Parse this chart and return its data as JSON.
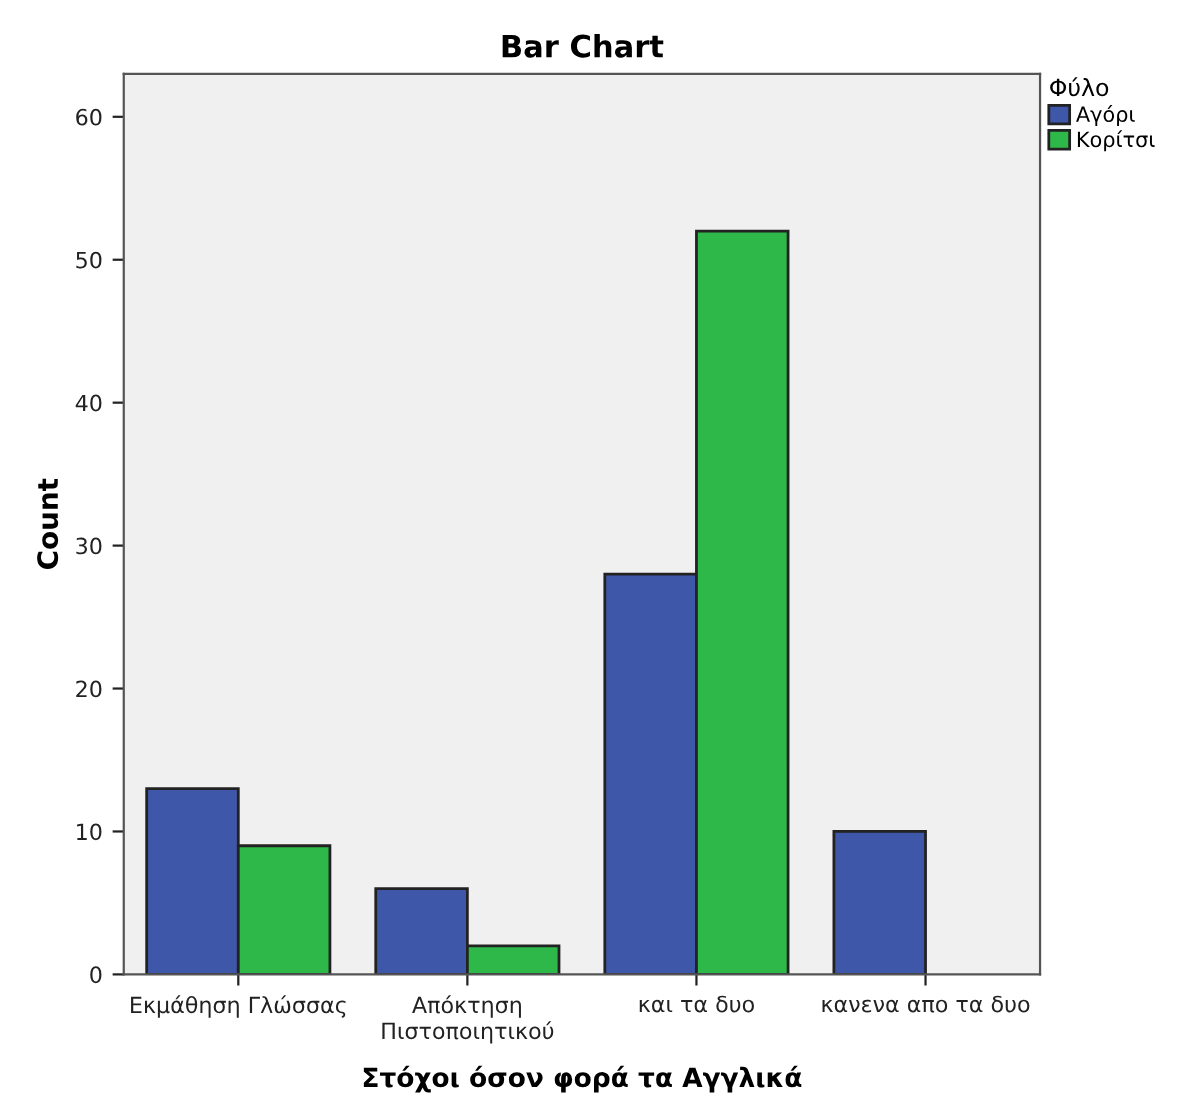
{
  "chart_data": {
    "type": "bar",
    "title": "Bar Chart",
    "xlabel": "Στόχοι όσον φορά τα Αγγλικά",
    "ylabel": "Count",
    "categories": [
      "Εκμάθηση Γλώσσας",
      "Απόκτηση\nΠιστοποιητικού",
      "και τα δυο",
      "κανενα απο τα δυο"
    ],
    "series": [
      {
        "name": "Αγόρι",
        "color": "#3e57a8",
        "values": [
          13,
          6,
          28,
          10
        ]
      },
      {
        "name": "Κορίτσι",
        "color": "#2fb84a",
        "values": [
          9,
          2,
          52,
          null
        ]
      }
    ],
    "legend_title": "Φύλο",
    "legend": "top right",
    "grid": false,
    "ylim": [
      0,
      63
    ],
    "yticks": [
      0,
      10,
      20,
      30,
      40,
      50,
      60
    ]
  }
}
